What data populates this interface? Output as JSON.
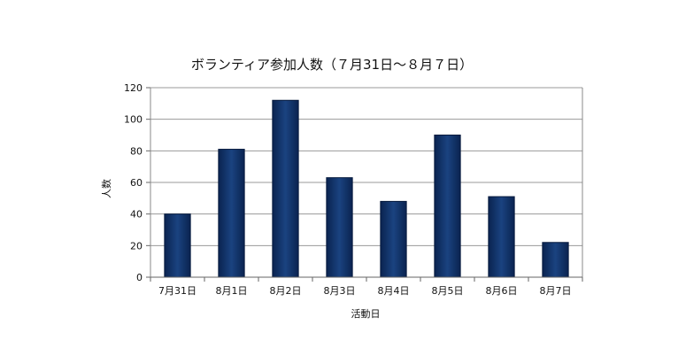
{
  "chart_data": {
    "type": "bar",
    "title": "ボランティア参加人数（７月31日～８月７日）",
    "xlabel": "活動日",
    "ylabel": "人数",
    "categories": [
      "7月31日",
      "8月1日",
      "8月2日",
      "8月3日",
      "8月4日",
      "8月5日",
      "8月6日",
      "8月7日"
    ],
    "values": [
      40,
      81,
      112,
      63,
      48,
      90,
      51,
      22
    ],
    "ylim": [
      0,
      120
    ],
    "yticks": [
      0,
      20,
      40,
      60,
      80,
      100,
      120
    ],
    "grid": true,
    "legend": "none",
    "bar_color": "#0f2f62"
  }
}
